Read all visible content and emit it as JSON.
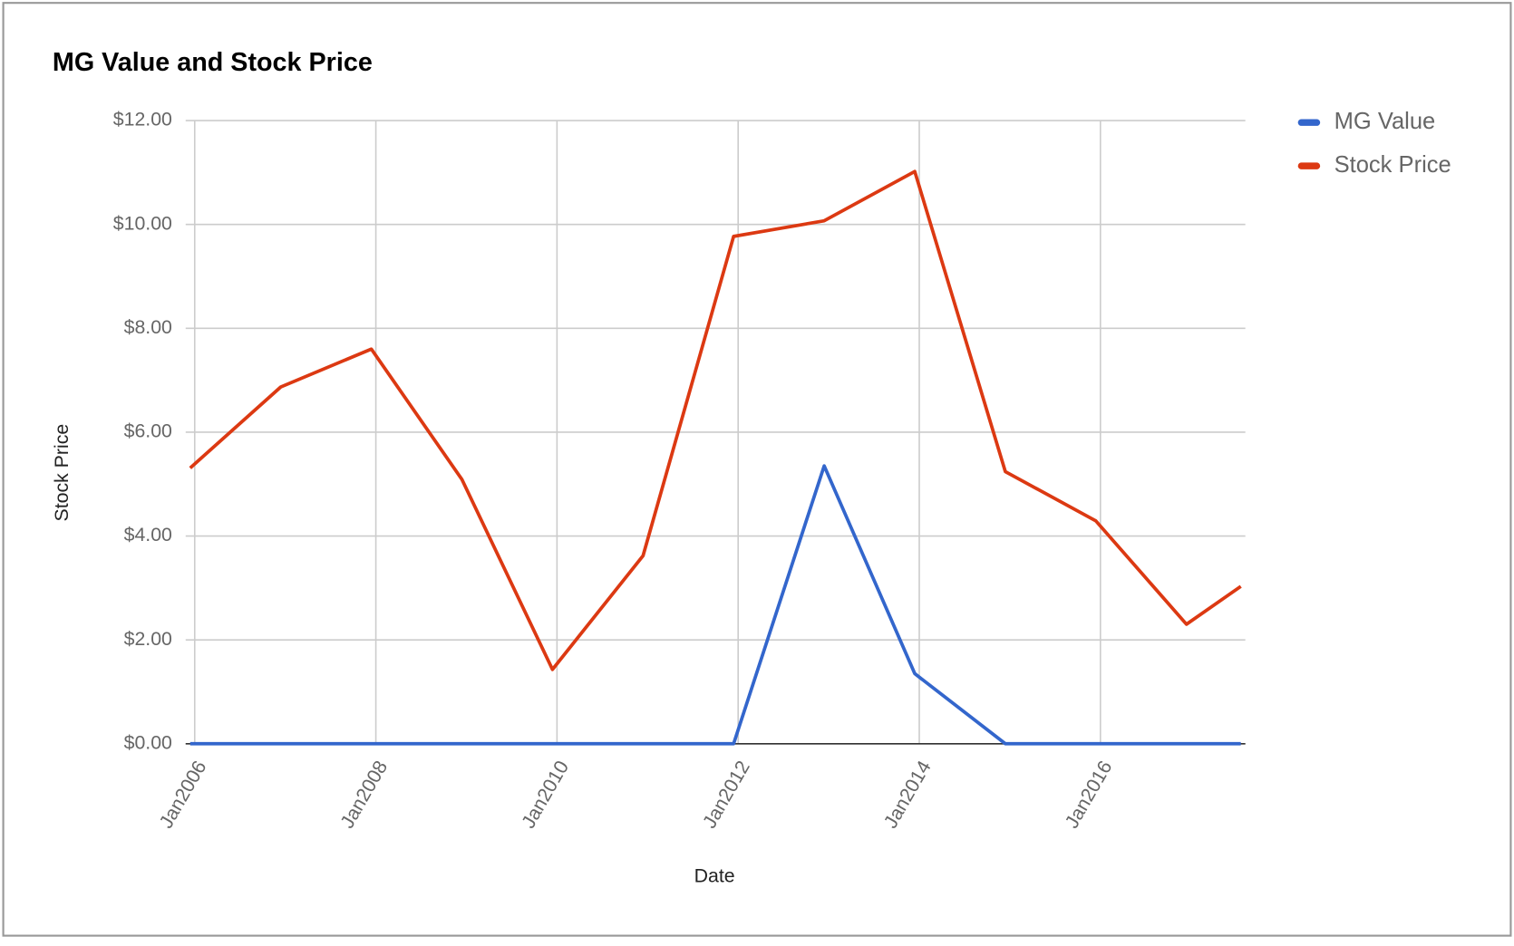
{
  "chart_data": {
    "type": "line",
    "title": "MG Value and Stock Price",
    "x_label": "Date",
    "y_label": "Stock Price",
    "x": [
      2005.95,
      2006.95,
      2007.95,
      2008.95,
      2009.95,
      2010.95,
      2011.95,
      2012.95,
      2013.95,
      2014.95,
      2015.95,
      2016.95,
      2017.55
    ],
    "series": [
      {
        "name": "MG Value",
        "color": "#3366cc",
        "values": [
          0,
          0,
          0,
          0,
          0,
          0,
          0,
          5.35,
          1.35,
          0,
          0,
          0,
          0
        ]
      },
      {
        "name": "Stock Price",
        "color": "#dc3912",
        "values": [
          5.31,
          6.87,
          7.6,
          5.09,
          1.43,
          3.62,
          9.77,
          10.07,
          11.02,
          5.24,
          4.29,
          2.3,
          3.03
        ]
      }
    ],
    "xlim": [
      2005.9,
      2017.6
    ],
    "xticks": [
      {
        "value": 2006,
        "label": "Jan2006"
      },
      {
        "value": 2008,
        "label": "Jan2008"
      },
      {
        "value": 2010,
        "label": "Jan2010"
      },
      {
        "value": 2012,
        "label": "Jan2012"
      },
      {
        "value": 2014,
        "label": "Jan2014"
      },
      {
        "value": 2016,
        "label": "Jan2016"
      }
    ],
    "ylim": [
      0,
      12
    ],
    "yticks": [
      {
        "value": 0,
        "label": "$0.00"
      },
      {
        "value": 2,
        "label": "$2.00"
      },
      {
        "value": 4,
        "label": "$4.00"
      },
      {
        "value": 6,
        "label": "$6.00"
      },
      {
        "value": 8,
        "label": "$8.00"
      },
      {
        "value": 10,
        "label": "$10.00"
      },
      {
        "value": 12,
        "label": "$12.00"
      }
    ],
    "grid": true,
    "legend": "right"
  }
}
